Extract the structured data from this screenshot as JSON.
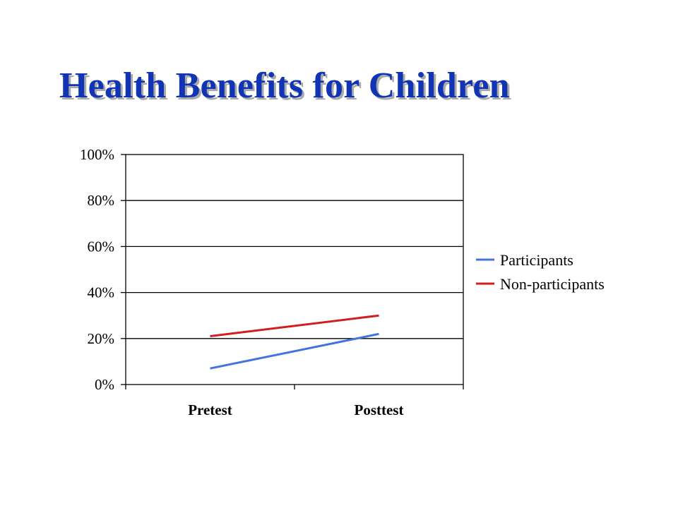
{
  "slide": {
    "title": "Health Benefits for Children"
  },
  "chart_data": {
    "type": "line",
    "title": "",
    "xlabel": "",
    "ylabel": "",
    "categories": [
      "Pretest",
      "Posttest"
    ],
    "series": [
      {
        "name": "Participants",
        "color": "#4472e0",
        "values": [
          7,
          22
        ]
      },
      {
        "name": "Non-participants",
        "color": "#d21e1e",
        "values": [
          21,
          30
        ]
      }
    ],
    "ylim": [
      0,
      100
    ],
    "yticks": [
      0,
      20,
      40,
      60,
      80,
      100
    ],
    "ytick_labels": [
      "0%",
      "20%",
      "40%",
      "60%",
      "80%",
      "100%"
    ],
    "grid": true,
    "legend": "right"
  }
}
